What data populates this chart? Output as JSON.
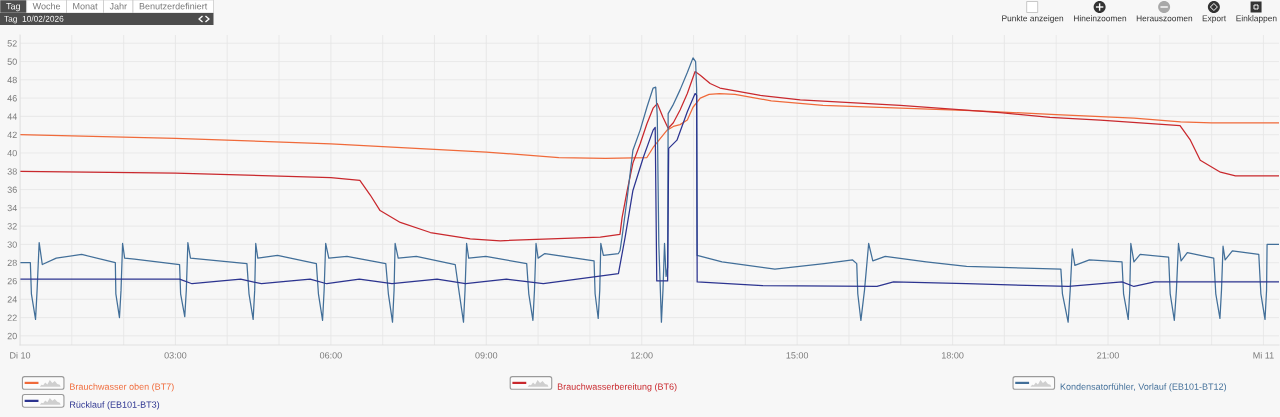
{
  "chart_data": {
    "type": "line",
    "annotations": [
      "Tag",
      "Woche",
      "Monat",
      "Jahr",
      "Benutzerdefiniert",
      "Tag  10/02/2026",
      "Punkte anzeigen",
      "Hineinzoomen",
      "Herauszoomen",
      "Export",
      "Einklappen"
    ],
    "xlim": [
      0,
      24.3
    ],
    "xticks": [
      {
        "value": 0,
        "label": "Di 10"
      },
      {
        "value": 1,
        "label": null
      },
      {
        "value": 2,
        "label": null
      },
      {
        "value": 3,
        "label": "03:00"
      },
      {
        "value": 4,
        "label": null
      },
      {
        "value": 5,
        "label": null
      },
      {
        "value": 6,
        "label": "06:00"
      },
      {
        "value": 7,
        "label": null
      },
      {
        "value": 8,
        "label": null
      },
      {
        "value": 9,
        "label": "09:00"
      },
      {
        "value": 10,
        "label": null
      },
      {
        "value": 11,
        "label": null
      },
      {
        "value": 12,
        "label": "12:00"
      },
      {
        "value": 13,
        "label": null
      },
      {
        "value": 14,
        "label": null
      },
      {
        "value": 15,
        "label": "15:00"
      },
      {
        "value": 16,
        "label": null
      },
      {
        "value": 17,
        "label": null
      },
      {
        "value": 18,
        "label": "18:00"
      },
      {
        "value": 19,
        "label": null
      },
      {
        "value": 20,
        "label": null
      },
      {
        "value": 21,
        "label": "21:00"
      },
      {
        "value": 22,
        "label": null
      },
      {
        "value": 23,
        "label": null
      },
      {
        "value": 24,
        "label": "Mi 11"
      }
    ],
    "ylim": [
      19,
      52.9
    ],
    "yticks": [
      20,
      22,
      24,
      26,
      28,
      30,
      32,
      34,
      36,
      38,
      40,
      42,
      44,
      46,
      48,
      50,
      52
    ],
    "grid": true,
    "legend": "bottom",
    "line_style": "solid",
    "series": [
      {
        "name": "Brauchwasser oben (BT7)",
        "color": "#f06a3a",
        "x": [
          0,
          3,
          6,
          9,
          10.4,
          11.3,
          12.1,
          12.22,
          12.36,
          12.49,
          12.61,
          12.74,
          12.88,
          12.99,
          13.13,
          13.3,
          13.5,
          13.8,
          14.5,
          15.5,
          17,
          18.5,
          20,
          21.5,
          22.4,
          23,
          24.3
        ],
        "values": [
          42.0,
          41.6,
          41.0,
          40.1,
          39.5,
          39.4,
          39.5,
          40.6,
          41.6,
          42.5,
          42.9,
          43.1,
          43.6,
          45.0,
          46.0,
          46.4,
          46.5,
          46.4,
          45.7,
          45.2,
          44.9,
          44.6,
          44.2,
          43.8,
          43.4,
          43.3,
          43.3
        ]
      },
      {
        "name": "Brauchwasserbereitung (BT6)",
        "color": "#c9282d",
        "x": [
          0,
          3,
          6,
          6.56,
          6.76,
          6.95,
          7.34,
          7.92,
          8.69,
          9.27,
          11.2,
          11.58,
          11.62,
          11.72,
          11.83,
          11.97,
          12.1,
          12.22,
          12.3,
          12.41,
          12.51,
          12.61,
          12.74,
          12.88,
          13.03,
          13.13,
          13.32,
          13.51,
          14.29,
          15.06,
          16.99,
          18.92,
          19.88,
          20.85,
          22.39,
          22.59,
          22.78,
          23.17,
          23.46,
          24.3
        ],
        "values": [
          38.0,
          37.8,
          37.3,
          37.0,
          35.4,
          33.7,
          32.4,
          31.3,
          30.6,
          30.4,
          30.8,
          31.1,
          32.9,
          35.9,
          38.9,
          41.0,
          43.2,
          44.9,
          45.4,
          43.9,
          42.7,
          43.3,
          44.7,
          46.5,
          48.9,
          48.5,
          47.6,
          47.1,
          46.3,
          45.8,
          45.2,
          44.4,
          43.9,
          43.6,
          43.0,
          41.4,
          39.2,
          37.9,
          37.5,
          37.5
        ]
      },
      {
        "name": "Kondensatorfühler, Vorlauf (EB101-BT12)",
        "color": "#426f99",
        "x": [
          0,
          0.2,
          0.22,
          0.3,
          0.33,
          0.37,
          0.43,
          0.7,
          1.19,
          1.78,
          1.84,
          1.85,
          1.92,
          1.95,
          1.98,
          2.02,
          2.21,
          3.08,
          3.1,
          3.18,
          3.21,
          3.24,
          3.29,
          4.38,
          4.42,
          4.5,
          4.53,
          4.55,
          4.59,
          4.97,
          5.72,
          5.76,
          5.84,
          5.87,
          5.9,
          5.96,
          6.31,
          7.06,
          7.11,
          7.19,
          7.22,
          7.24,
          7.3,
          7.65,
          8.4,
          8.48,
          8.56,
          8.59,
          8.62,
          8.66,
          8.99,
          9.78,
          9.82,
          9.9,
          9.93,
          9.96,
          10.0,
          10.13,
          11.08,
          11.1,
          11.16,
          11.19,
          11.21,
          11.26,
          11.55,
          11.58,
          11.62,
          11.72,
          11.83,
          11.97,
          12.1,
          12.22,
          12.27,
          12.3,
          12.33,
          12.38,
          12.41,
          12.44,
          12.47,
          12.5,
          12.51,
          12.6,
          12.74,
          12.88,
          12.99,
          13.04,
          13.06,
          13.07,
          13.55,
          14.57,
          15.52,
          16.07,
          16.15,
          16.17,
          16.23,
          16.3,
          16.38,
          16.46,
          16.7,
          17.49,
          18.27,
          20.09,
          20.12,
          20.23,
          20.27,
          20.31,
          20.36,
          20.64,
          21.27,
          21.3,
          21.39,
          21.42,
          21.44,
          21.5,
          21.62,
          22.17,
          22.2,
          22.28,
          22.32,
          22.36,
          22.41,
          22.53,
          23.04,
          23.08,
          23.16,
          23.19,
          23.22,
          23.26,
          23.4,
          23.91,
          23.95,
          24.03,
          24.06,
          24.07,
          24.3
        ],
        "values": [
          28.0,
          28.0,
          24.6,
          21.8,
          25.0,
          30.2,
          27.8,
          28.5,
          28.9,
          28.1,
          28.0,
          24.6,
          22.0,
          25.0,
          30.1,
          28.5,
          28.4,
          27.8,
          24.6,
          22.1,
          25.0,
          30.2,
          28.5,
          27.9,
          24.6,
          21.8,
          25.0,
          30.1,
          28.5,
          28.8,
          27.9,
          24.6,
          21.7,
          25.0,
          30.1,
          28.5,
          28.7,
          27.9,
          24.6,
          21.5,
          25.0,
          30.1,
          28.5,
          28.7,
          27.8,
          24.6,
          21.5,
          25.0,
          30.1,
          28.5,
          28.7,
          27.9,
          24.6,
          21.7,
          25.0,
          30.1,
          28.5,
          29.0,
          28.2,
          24.6,
          21.9,
          25.0,
          30.1,
          28.8,
          29.0,
          29.3,
          30.8,
          35.1,
          40.3,
          42.5,
          45.0,
          47.1,
          47.2,
          44.0,
          30.0,
          21.5,
          25.0,
          30.1,
          26.5,
          27.5,
          44.3,
          45.2,
          46.9,
          48.8,
          50.4,
          50.0,
          47.0,
          28.8,
          28.1,
          27.3,
          27.9,
          28.3,
          27.9,
          24.6,
          21.7,
          25.0,
          30.1,
          28.2,
          28.7,
          28.1,
          27.6,
          27.3,
          24.6,
          21.5,
          25.0,
          29.5,
          27.7,
          28.3,
          28.1,
          24.6,
          21.8,
          25.0,
          30.1,
          28.1,
          28.9,
          28.6,
          24.6,
          21.7,
          25.0,
          30.1,
          28.2,
          29.1,
          28.5,
          24.6,
          21.9,
          25.0,
          29.8,
          28.3,
          29.3,
          28.9,
          24.6,
          21.8,
          25.0,
          30.0,
          30.0
        ]
      },
      {
        "name": "Rücklauf (EB101-BT3)",
        "color": "#2c3490",
        "x": [
          0,
          3.08,
          3.32,
          4.26,
          4.66,
          5.6,
          5.92,
          6.55,
          7.18,
          8.05,
          8.6,
          9.39,
          10.1,
          11.55,
          11.68,
          11.83,
          12.03,
          12.22,
          12.26,
          12.29,
          12.5,
          12.52,
          12.68,
          12.88,
          13.03,
          13.06,
          13.07,
          14.33,
          16.54,
          16.86,
          18.27,
          20.24,
          21.27,
          21.5,
          21.9,
          24.3
        ],
        "values": [
          26.2,
          26.2,
          25.7,
          26.2,
          25.7,
          26.2,
          25.7,
          26.2,
          25.7,
          26.2,
          25.7,
          26.2,
          25.7,
          26.8,
          30.8,
          35.9,
          39.5,
          42.5,
          42.8,
          26.0,
          26.0,
          40.5,
          41.4,
          44.5,
          46.5,
          46.3,
          25.9,
          25.5,
          25.4,
          25.9,
          25.7,
          25.4,
          25.9,
          25.4,
          25.9,
          25.9
        ]
      }
    ]
  }
}
